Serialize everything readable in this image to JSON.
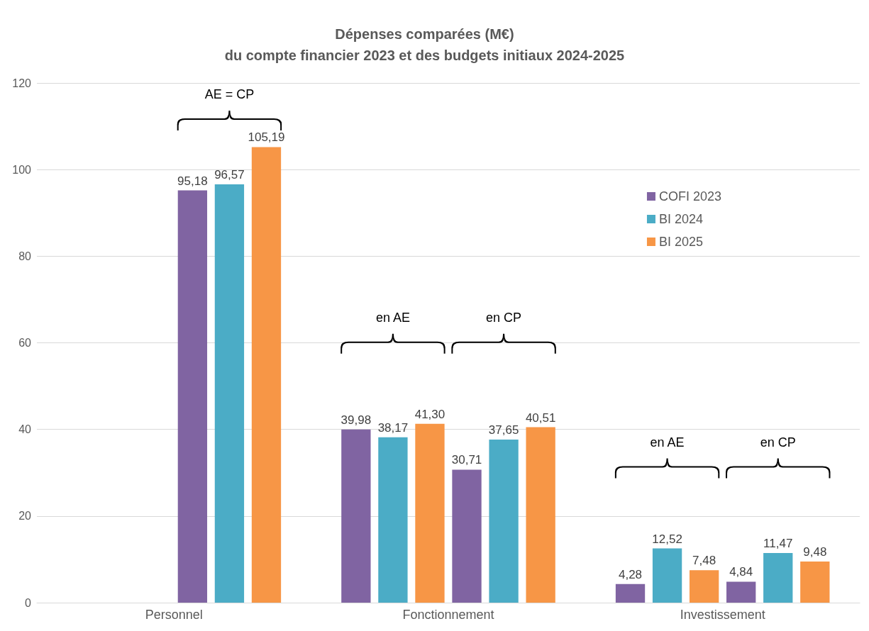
{
  "chart_data": {
    "type": "bar",
    "title": "Dépenses comparées (M€)\ndu compte financier 2023 et des budgets initiaux 2024-2025",
    "categories": [
      "Personnel",
      "Fonctionnement",
      "Investissement"
    ],
    "series": [
      {
        "name": "COFI 2023",
        "color": "#8064a2",
        "values": [
          null,
          39.98,
          4.28
        ],
        "value_labels": [
          null,
          "39,98",
          "4,28"
        ]
      },
      {
        "name": "BI 2024",
        "color": "#4bacc6",
        "values": [
          null,
          38.17,
          12.52
        ],
        "value_labels": [
          null,
          "38,17",
          "12,52"
        ]
      },
      {
        "name": "BI 2025",
        "color": "#f79646",
        "values": [
          null,
          41.3,
          7.48
        ],
        "value_labels": [
          null,
          "41,30",
          "7,48"
        ]
      },
      {
        "color": "#8064a2",
        "values": [
          95.18,
          30.71,
          4.84
        ],
        "value_labels": [
          "95,18",
          "30,71",
          "4,84"
        ]
      },
      {
        "color": "#4bacc6",
        "values": [
          96.57,
          37.65,
          11.47
        ],
        "value_labels": [
          "96,57",
          "37,65",
          "11,47"
        ]
      },
      {
        "color": "#f79646",
        "values": [
          105.19,
          40.51,
          9.48
        ],
        "value_labels": [
          "105,19",
          "40,51",
          "9,48"
        ]
      }
    ],
    "ylim": [
      0,
      120
    ],
    "yticks": [
      0,
      20,
      40,
      60,
      80,
      100,
      120
    ],
    "grid": "y",
    "legend": "right",
    "annotations": [
      "AE = CP",
      "en AE",
      "en CP",
      "en AE",
      "en CP"
    ]
  }
}
